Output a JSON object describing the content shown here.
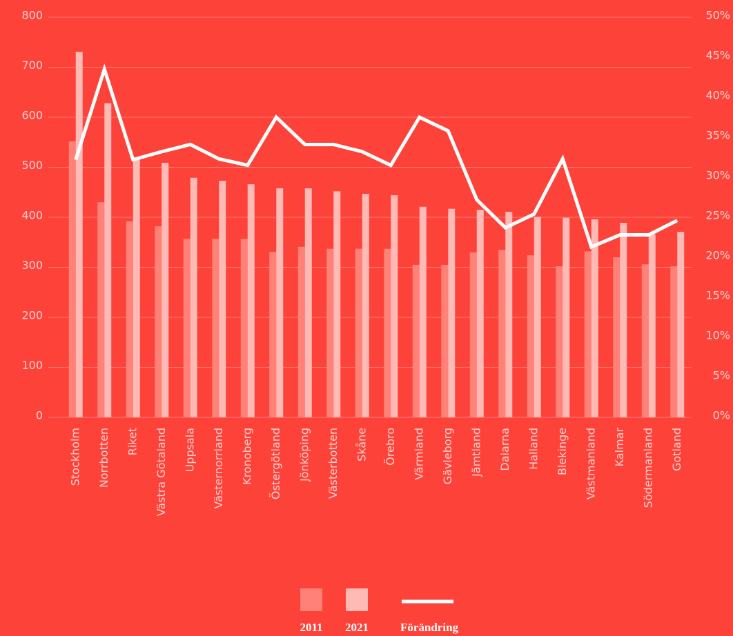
{
  "chart_data": {
    "type": "bar",
    "categories": [
      "Stockholm",
      "Norrbotten",
      "Riket",
      "Västra Götaland",
      "Uppsala",
      "Västernorrland",
      "Kronoberg",
      "Östergötland",
      "Jönköping",
      "Västerbotten",
      "Skåne",
      "Örebro",
      "Värmland",
      "Gävleborg",
      "Jämtland",
      "Dalarna",
      "Halland",
      "Blekinge",
      "Västmanland",
      "Kalmar",
      "Södermanland",
      "Gotland"
    ],
    "series": [
      {
        "name": "2011",
        "color": "#ff8178",
        "values": [
          552,
          430,
          392,
          382,
          357,
          357,
          357,
          331,
          341,
          337,
          337,
          337,
          305,
          305,
          330,
          335,
          324,
          302,
          332,
          320,
          306,
          302
        ]
      },
      {
        "name": "2021",
        "color": "#ffbab5",
        "values": [
          731,
          628,
          517,
          509,
          479,
          473,
          466,
          458,
          458,
          452,
          447,
          444,
          421,
          417,
          415,
          411,
          401,
          399,
          396,
          389,
          366,
          371
        ]
      },
      {
        "name": "Förändring",
        "color": "#ffffff",
        "type": "line",
        "axis": "y2",
        "values": [
          32.2,
          43.5,
          32.2,
          33.2,
          34.1,
          32.3,
          31.5,
          37.5,
          34.1,
          34.1,
          33.2,
          31.5,
          37.5,
          35.8,
          27.2,
          23.7,
          25.4,
          32.3,
          21.3,
          22.8,
          22.8,
          24.6
        ]
      }
    ],
    "ylim": [
      0,
      800
    ],
    "yticks": [
      0,
      100,
      200,
      300,
      400,
      500,
      600,
      700,
      800
    ],
    "y2lim": [
      0,
      50
    ],
    "y2ticks": [
      {
        "value": 0,
        "label": "0%"
      },
      {
        "value": 5,
        "label": "5%"
      },
      {
        "value": 10,
        "label": "10%"
      },
      {
        "value": 15,
        "label": "15%"
      },
      {
        "value": 20,
        "label": "20%"
      },
      {
        "value": 25,
        "label": "25%"
      },
      {
        "value": 30,
        "label": "30%"
      },
      {
        "value": 35,
        "label": "35%"
      },
      {
        "value": 40,
        "label": "40%"
      },
      {
        "value": 45,
        "label": "45%"
      },
      {
        "value": 50,
        "label": "50%"
      }
    ],
    "grid": true,
    "legend": "bottom"
  }
}
